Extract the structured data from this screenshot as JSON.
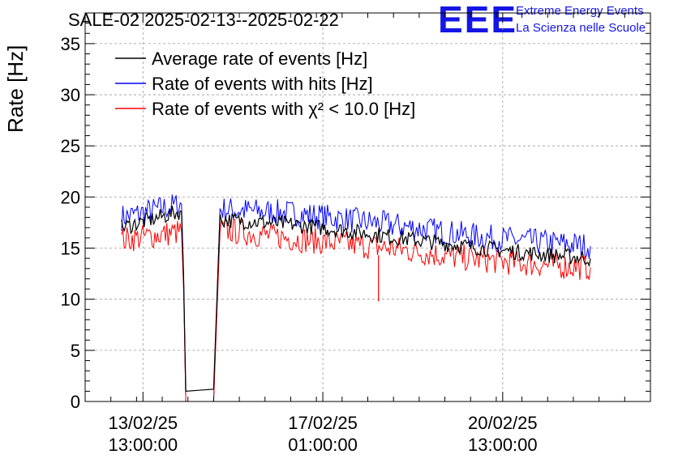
{
  "header": {
    "title": "SALE-02 2025-02-13--2025-02-22",
    "logo_text": "EEE",
    "logo_line1": "Extreme Energy Events",
    "logo_line2": "La Scienza nelle Scuole"
  },
  "chart_data": {
    "type": "line",
    "title": "SALE-02 2025-02-13--2025-02-22",
    "ylabel": "Rate [Hz]",
    "xlabel": "",
    "ylim": [
      0,
      38
    ],
    "y_ticks": [
      0,
      5,
      10,
      15,
      20,
      25,
      30,
      35
    ],
    "x_ticks": [
      {
        "date": "13/02/25",
        "time": "13:00:00",
        "t": "2025-02-13T13:00:00"
      },
      {
        "date": "17/02/25",
        "time": "01:00:00",
        "t": "2025-02-17T01:00:00"
      },
      {
        "date": "20/02/25",
        "time": "13:00:00",
        "t": "2025-02-20T13:00:00"
      }
    ],
    "xlim": [
      "2025-02-12T10:00:00",
      "2025-02-23T10:00:00"
    ],
    "grid": true,
    "legend_position": "top-left",
    "series": [
      {
        "name": "Average rate of events [Hz]",
        "color": "#000000",
        "points": [
          [
            "2025-02-13T03:00:00",
            17.0
          ],
          [
            "2025-02-14T07:00:00",
            18.6
          ],
          [
            "2025-02-14T08:00:00",
            12.0
          ],
          [
            "2025-02-14T09:00:00",
            1.0
          ],
          [
            "2025-02-14T22:00:00",
            1.2
          ],
          [
            "2025-02-15T01:00:00",
            17.8
          ],
          [
            "2025-02-16T12:00:00",
            17.3
          ],
          [
            "2025-02-17T12:00:00",
            16.7
          ],
          [
            "2025-02-18T12:00:00",
            16.0
          ],
          [
            "2025-02-19T12:00:00",
            15.4
          ],
          [
            "2025-02-20T12:00:00",
            14.8
          ],
          [
            "2025-02-21T12:00:00",
            14.3
          ],
          [
            "2025-02-22T06:00:00",
            14.0
          ]
        ]
      },
      {
        "name": "Rate of events with hits [Hz]",
        "color": "#0000ff",
        "points": [
          [
            "2025-02-13T03:00:00",
            18.0
          ],
          [
            "2025-02-14T07:00:00",
            19.3
          ],
          [
            "2025-02-14T08:00:00",
            12.5
          ],
          [
            "2025-02-14T09:00:00",
            0
          ],
          [
            "2025-02-14T22:00:00",
            0
          ],
          [
            "2025-02-15T01:00:00",
            18.8
          ],
          [
            "2025-02-16T12:00:00",
            18.4
          ],
          [
            "2025-02-17T12:00:00",
            17.8
          ],
          [
            "2025-02-18T12:00:00",
            17.2
          ],
          [
            "2025-02-19T12:00:00",
            16.5
          ],
          [
            "2025-02-20T12:00:00",
            15.9
          ],
          [
            "2025-02-21T12:00:00",
            15.5
          ],
          [
            "2025-02-22T06:00:00",
            15.2
          ]
        ]
      },
      {
        "name": "Rate of events with χ² < 10.0 [Hz]",
        "color": "#ff0000",
        "points": [
          [
            "2025-02-13T03:00:00",
            15.8
          ],
          [
            "2025-02-14T07:00:00",
            16.6
          ],
          [
            "2025-02-14T08:00:00",
            11.0
          ],
          [
            "2025-02-14T09:00:00",
            0
          ],
          [
            "2025-02-14T22:00:00",
            0
          ],
          [
            "2025-02-15T01:00:00",
            16.8
          ],
          [
            "2025-02-16T12:00:00",
            15.9
          ],
          [
            "2025-02-17T12:00:00",
            15.4
          ],
          [
            "2025-02-18T12:00:00",
            14.9
          ],
          [
            "2025-02-19T12:00:00",
            14.2
          ],
          [
            "2025-02-20T12:00:00",
            13.7
          ],
          [
            "2025-02-21T12:00:00",
            13.3
          ],
          [
            "2025-02-22T06:00:00",
            13.1
          ]
        ]
      }
    ],
    "annotations": [
      {
        "series": "Rate of events with χ² < 10.0 [Hz]",
        "t": "2025-02-18T03:00:00",
        "value": 9.8,
        "note": "isolated dip"
      }
    ]
  }
}
